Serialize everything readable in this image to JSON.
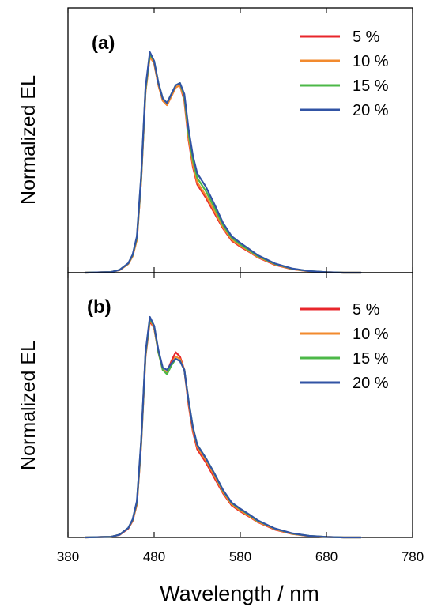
{
  "chart_data": [
    {
      "type": "line",
      "panel_label": "(a)",
      "xlabel": "Wavelength / nm",
      "ylabel": "Normalized EL",
      "xlim": [
        380,
        780
      ],
      "ylim": [
        0,
        1.0
      ],
      "xticks": [
        380,
        480,
        580,
        680,
        780
      ],
      "show_y_ticks": false,
      "grid": false,
      "legend_position": "top-right",
      "series": [
        {
          "name": "5 %",
          "color": "#e8262b",
          "x": [
            400,
            430,
            440,
            450,
            455,
            460,
            465,
            470,
            475,
            480,
            485,
            490,
            495,
            500,
            505,
            510,
            515,
            520,
            525,
            530,
            540,
            550,
            560,
            570,
            580,
            590,
            600,
            620,
            640,
            660,
            680,
            700,
            720
          ],
          "y": [
            0.0,
            0.003,
            0.012,
            0.04,
            0.075,
            0.15,
            0.42,
            0.82,
            0.98,
            0.95,
            0.85,
            0.78,
            0.76,
            0.8,
            0.84,
            0.85,
            0.78,
            0.6,
            0.48,
            0.4,
            0.34,
            0.27,
            0.2,
            0.145,
            0.118,
            0.095,
            0.07,
            0.036,
            0.016,
            0.006,
            0.002,
            0.0,
            0.0
          ]
        },
        {
          "name": "10 %",
          "color": "#f28a2e",
          "x": [
            400,
            430,
            440,
            450,
            455,
            460,
            465,
            470,
            475,
            480,
            485,
            490,
            495,
            500,
            505,
            510,
            515,
            520,
            525,
            530,
            540,
            550,
            560,
            570,
            580,
            590,
            600,
            620,
            640,
            660,
            680,
            700,
            720
          ],
          "y": [
            0.0,
            0.003,
            0.012,
            0.04,
            0.075,
            0.15,
            0.42,
            0.82,
            0.98,
            0.95,
            0.85,
            0.78,
            0.76,
            0.8,
            0.84,
            0.85,
            0.79,
            0.61,
            0.49,
            0.41,
            0.35,
            0.28,
            0.205,
            0.15,
            0.122,
            0.098,
            0.072,
            0.038,
            0.017,
            0.006,
            0.002,
            0.0,
            0.0
          ]
        },
        {
          "name": "15 %",
          "color": "#4cb848",
          "x": [
            400,
            430,
            440,
            450,
            455,
            460,
            465,
            470,
            475,
            480,
            485,
            490,
            495,
            500,
            505,
            510,
            515,
            520,
            525,
            530,
            540,
            550,
            560,
            570,
            580,
            590,
            600,
            620,
            640,
            660,
            680,
            700,
            720
          ],
          "y": [
            0.0,
            0.003,
            0.013,
            0.042,
            0.08,
            0.16,
            0.43,
            0.83,
            0.99,
            0.96,
            0.86,
            0.79,
            0.77,
            0.81,
            0.85,
            0.86,
            0.8,
            0.63,
            0.51,
            0.43,
            0.37,
            0.295,
            0.215,
            0.158,
            0.128,
            0.103,
            0.076,
            0.04,
            0.018,
            0.007,
            0.002,
            0.0,
            0.0
          ]
        },
        {
          "name": "20 %",
          "color": "#3153a4",
          "x": [
            400,
            430,
            440,
            450,
            455,
            460,
            465,
            470,
            475,
            480,
            485,
            490,
            495,
            500,
            505,
            510,
            515,
            520,
            525,
            530,
            540,
            550,
            560,
            570,
            580,
            590,
            600,
            620,
            640,
            660,
            680,
            700,
            720
          ],
          "y": [
            0.0,
            0.003,
            0.013,
            0.043,
            0.082,
            0.165,
            0.44,
            0.84,
            1.0,
            0.96,
            0.86,
            0.79,
            0.77,
            0.81,
            0.85,
            0.86,
            0.81,
            0.65,
            0.53,
            0.45,
            0.39,
            0.31,
            0.225,
            0.165,
            0.135,
            0.108,
            0.08,
            0.042,
            0.019,
            0.007,
            0.002,
            0.0,
            0.0
          ]
        }
      ]
    },
    {
      "type": "line",
      "panel_label": "(b)",
      "xlabel": "Wavelength / nm",
      "ylabel": "Normalized EL",
      "xlim": [
        380,
        780
      ],
      "ylim": [
        0,
        1.0
      ],
      "xticks": [
        380,
        480,
        580,
        680,
        780
      ],
      "show_y_ticks": false,
      "grid": false,
      "legend_position": "top-right",
      "series": [
        {
          "name": "5 %",
          "color": "#e8262b",
          "x": [
            400,
            430,
            440,
            450,
            455,
            460,
            465,
            470,
            475,
            480,
            485,
            490,
            495,
            500,
            505,
            510,
            515,
            520,
            525,
            530,
            540,
            550,
            560,
            570,
            580,
            590,
            600,
            620,
            640,
            660,
            680,
            700,
            720
          ],
          "y": [
            0.0,
            0.003,
            0.012,
            0.04,
            0.075,
            0.15,
            0.42,
            0.82,
            0.98,
            0.95,
            0.84,
            0.76,
            0.75,
            0.8,
            0.84,
            0.82,
            0.76,
            0.6,
            0.48,
            0.4,
            0.34,
            0.27,
            0.2,
            0.145,
            0.118,
            0.095,
            0.07,
            0.036,
            0.016,
            0.006,
            0.002,
            0.0,
            0.0
          ]
        },
        {
          "name": "10 %",
          "color": "#f28a2e",
          "x": [
            400,
            430,
            440,
            450,
            455,
            460,
            465,
            470,
            475,
            480,
            485,
            490,
            495,
            500,
            505,
            510,
            515,
            520,
            525,
            530,
            540,
            550,
            560,
            570,
            580,
            590,
            600,
            620,
            640,
            660,
            680,
            700,
            720
          ],
          "y": [
            0.0,
            0.003,
            0.013,
            0.042,
            0.078,
            0.155,
            0.43,
            0.83,
            0.99,
            0.95,
            0.84,
            0.76,
            0.75,
            0.79,
            0.82,
            0.81,
            0.76,
            0.61,
            0.49,
            0.41,
            0.35,
            0.28,
            0.205,
            0.15,
            0.122,
            0.098,
            0.072,
            0.038,
            0.017,
            0.006,
            0.002,
            0.0,
            0.0
          ]
        },
        {
          "name": "15 %",
          "color": "#4cb848",
          "x": [
            400,
            430,
            440,
            450,
            455,
            460,
            465,
            470,
            475,
            480,
            485,
            490,
            495,
            500,
            505,
            510,
            515,
            520,
            525,
            530,
            540,
            550,
            560,
            570,
            580,
            590,
            600,
            620,
            640,
            660,
            680,
            700,
            720
          ],
          "y": [
            0.0,
            0.003,
            0.013,
            0.043,
            0.08,
            0.16,
            0.43,
            0.83,
            0.99,
            0.96,
            0.84,
            0.76,
            0.74,
            0.78,
            0.81,
            0.8,
            0.76,
            0.62,
            0.5,
            0.42,
            0.36,
            0.29,
            0.212,
            0.156,
            0.128,
            0.103,
            0.076,
            0.04,
            0.018,
            0.007,
            0.002,
            0.0,
            0.0
          ]
        },
        {
          "name": "20 %",
          "color": "#3153a4",
          "x": [
            400,
            430,
            440,
            450,
            455,
            460,
            465,
            470,
            475,
            480,
            485,
            490,
            495,
            500,
            505,
            510,
            515,
            520,
            525,
            530,
            540,
            550,
            560,
            570,
            580,
            590,
            600,
            620,
            640,
            660,
            680,
            700,
            720
          ],
          "y": [
            0.0,
            0.003,
            0.013,
            0.043,
            0.082,
            0.165,
            0.44,
            0.84,
            1.0,
            0.96,
            0.85,
            0.77,
            0.76,
            0.79,
            0.81,
            0.8,
            0.76,
            0.62,
            0.5,
            0.42,
            0.36,
            0.29,
            0.215,
            0.158,
            0.13,
            0.105,
            0.078,
            0.041,
            0.019,
            0.007,
            0.002,
            0.0,
            0.0
          ]
        }
      ]
    }
  ]
}
